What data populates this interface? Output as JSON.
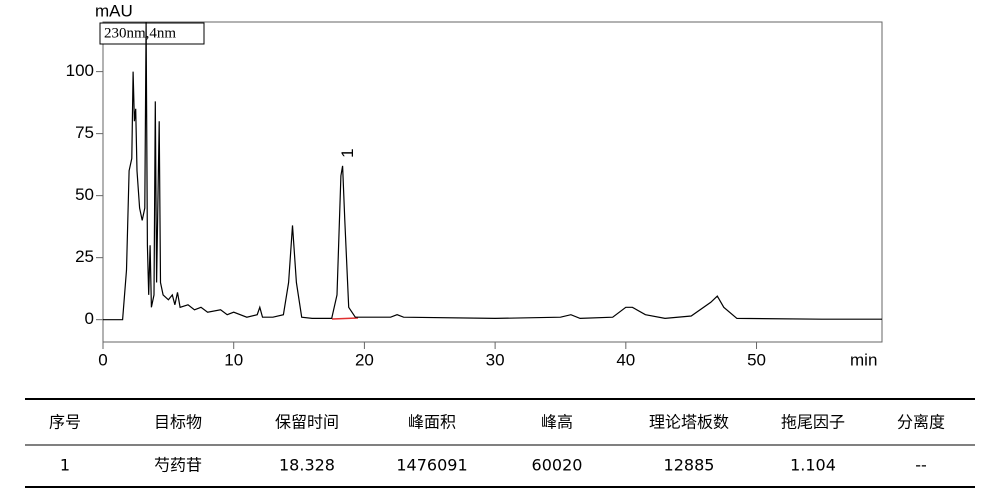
{
  "chart_data": {
    "type": "line",
    "ylabel": "mAU",
    "xlabel": "min",
    "x": [
      0,
      1.5,
      1.8,
      2.0,
      2.2,
      2.3,
      2.4,
      2.5,
      2.6,
      2.8,
      3.0,
      3.2,
      3.3,
      3.4,
      3.5,
      3.6,
      3.7,
      3.9,
      4.0,
      4.1,
      4.3,
      4.4,
      4.6,
      5.0,
      5.3,
      5.5,
      5.7,
      5.9,
      6.5,
      7,
      7.5,
      8,
      9,
      9.5,
      10,
      11,
      11.8,
      12,
      12.2,
      13,
      13.8,
      14.2,
      14.5,
      14.8,
      15.2,
      16,
      17.5,
      17.9,
      18.2,
      18.33,
      18.5,
      18.8,
      19.3,
      22,
      22.5,
      23,
      30,
      35,
      35.8,
      36.5,
      39,
      40,
      40.5,
      41.5,
      43,
      45,
      46.5,
      47,
      47.5,
      48.5,
      55,
      59.6
    ],
    "series": [
      {
        "name": "230nm,4nm",
        "color": "#000000",
        "values": [
          0,
          0,
          20,
          60,
          65,
          100,
          80,
          85,
          60,
          45,
          40,
          45,
          120,
          30,
          10,
          30,
          5,
          10,
          88,
          15,
          80,
          15,
          10,
          8,
          10,
          6,
          11,
          5,
          6,
          4,
          5,
          3,
          4,
          2,
          3,
          1,
          2,
          5,
          1,
          1,
          2,
          15,
          38,
          15,
          1,
          0.5,
          0.5,
          10,
          58,
          62,
          40,
          5,
          1,
          1,
          2,
          1,
          0.5,
          1,
          2,
          0.5,
          1,
          5,
          5,
          2,
          0.5,
          1.5,
          7,
          9.5,
          5,
          0.5,
          0.2,
          0.2
        ]
      }
    ],
    "xlim": [
      0,
      59.6
    ],
    "ylim": [
      -9,
      120
    ],
    "xticks": [
      0,
      10,
      20,
      30,
      40,
      50
    ],
    "yticks": [
      0,
      25,
      50,
      75,
      100
    ],
    "annotations": [
      {
        "text": "1",
        "x": 18.328,
        "y": 62
      }
    ]
  },
  "table": {
    "headers": [
      "序号",
      "目标物",
      "保留时间",
      "峰面积",
      "峰高",
      "理论塔板数",
      "拖尾因子",
      "分离度"
    ],
    "rows": [
      [
        "1",
        "芍药苷",
        "18.328",
        "1476091",
        "60020",
        "12885",
        "1.104",
        "--"
      ]
    ]
  }
}
